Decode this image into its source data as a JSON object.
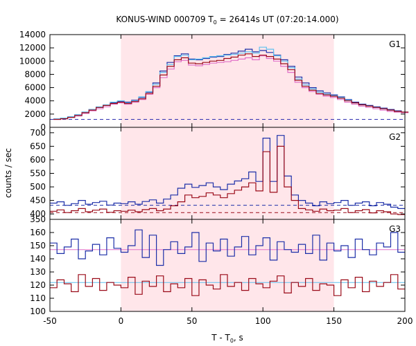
{
  "title_main": "KONUS-WIND 000709 T",
  "title_sub": "0",
  "title_rest": " = 26414s UT (07:20:14.000)",
  "xlabel_main": "T - T",
  "xlabel_sub": "0",
  "xlabel_rest": ", s",
  "ylabel": "counts / sec",
  "colors": {
    "shade": "#ffe6ea",
    "g1_curve_a": "#1c2fa8",
    "g1_curve_b": "#5fc0f0",
    "g1_curve_c": "#e070c8",
    "g1_curve_d": "#9a0a18",
    "g1_bg": "#3030b0",
    "g23_curve_a": "#1c2fa8",
    "g23_curve_b": "#9a0a18",
    "g23_fit_a": "#5fc0f0",
    "g23_fit_b": "#e070c8"
  },
  "chart_data": {
    "type": "line",
    "x_range": [
      -50,
      200
    ],
    "x_ticks": [
      -50,
      0,
      50,
      100,
      150,
      200
    ],
    "shaded_interval": [
      0,
      150
    ],
    "panels": [
      {
        "name": "G1",
        "ylim": [
          0,
          14000
        ],
        "y_ticks": [
          0,
          2000,
          4000,
          6000,
          8000,
          10000,
          12000,
          14000
        ],
        "background_level": 1200,
        "x": [
          -45,
          -40,
          -35,
          -30,
          -25,
          -20,
          -15,
          -10,
          -5,
          0,
          5,
          10,
          15,
          20,
          25,
          30,
          35,
          40,
          45,
          50,
          55,
          60,
          65,
          70,
          75,
          80,
          85,
          90,
          95,
          100,
          105,
          110,
          115,
          120,
          125,
          130,
          135,
          140,
          145,
          150,
          155,
          160,
          165,
          170,
          175,
          180,
          185,
          190,
          195,
          200
        ],
        "series": [
          {
            "values": [
              1300,
              1400,
              1600,
              1900,
              2300,
              2700,
              3000,
              3300,
              3700,
              3900,
              3800,
              4100,
              4500,
              5300,
              6700,
              8500,
              9800,
              10800,
              11100,
              10300,
              10200,
              10400,
              10600,
              10700,
              11000,
              11200,
              11500,
              11800,
              11400,
              11600,
              11300,
              10900,
              10200,
              9200,
              7600,
              6700,
              6000,
              5500,
              5200,
              4900,
              4600,
              4200,
              3800,
              3500,
              3300,
              3100,
              2900,
              2700,
              2500,
              2300
            ]
          },
          {
            "values": [
              1300,
              1400,
              1600,
              1900,
              2300,
              2700,
              3100,
              3400,
              3800,
              4000,
              3700,
              4000,
              4600,
              5400,
              6500,
              8300,
              9500,
              10700,
              10900,
              10200,
              10300,
              10500,
              10700,
              10800,
              10900,
              11000,
              11200,
              11400,
              11200,
              12100,
              11800,
              10800,
              10000,
              9000,
              7300,
              6400,
              5800,
              5300,
              5000,
              4800,
              4500,
              4100,
              3700,
              3400,
              3200,
              3000,
              2800,
              2600,
              2400,
              2200
            ]
          },
          {
            "values": [
              1200,
              1300,
              1500,
              1700,
              2100,
              2500,
              2800,
              3100,
              3500,
              3700,
              3500,
              3800,
              4200,
              5000,
              6000,
              7500,
              8800,
              9900,
              10100,
              9400,
              9300,
              9500,
              9700,
              9800,
              9900,
              10100,
              10300,
              10500,
              10200,
              10800,
              10400,
              10000,
              9200,
              8300,
              6800,
              6000,
              5400,
              5000,
              4700,
              4500,
              4200,
              3800,
              3500,
              3200,
              3000,
              2800,
              2600,
              2400,
              2300,
              2200
            ]
          },
          {
            "values": [
              1200,
              1300,
              1500,
              1800,
              2200,
              2600,
              3000,
              3300,
              3600,
              3800,
              3600,
              3900,
              4300,
              5100,
              6200,
              7900,
              9200,
              10200,
              10500,
              9700,
              9600,
              9800,
              10000,
              10100,
              10400,
              10600,
              10900,
              11100,
              10700,
              10900,
              10700,
              10300,
              9600,
              8700,
              7100,
              6200,
              5600,
              5100,
              4900,
              4700,
              4400,
              4000,
              3700,
              3400,
              3200,
              3000,
              2800,
              2600,
              2400,
              2300
            ]
          }
        ]
      },
      {
        "name": "G2",
        "ylim": [
          380,
          720
        ],
        "y_ticks": [
          400,
          450,
          500,
          550,
          600,
          650,
          700
        ],
        "background_levels": [
          432,
          405
        ],
        "x": [
          -47.5,
          -42.5,
          -37.5,
          -32.5,
          -27.5,
          -22.5,
          -17.5,
          -12.5,
          -7.5,
          -2.5,
          2.5,
          7.5,
          12.5,
          17.5,
          22.5,
          27.5,
          32.5,
          37.5,
          42.5,
          47.5,
          52.5,
          57.5,
          62.5,
          67.5,
          72.5,
          77.5,
          82.5,
          87.5,
          92.5,
          97.5,
          102.5,
          107.5,
          112.5,
          117.5,
          122.5,
          127.5,
          132.5,
          137.5,
          142.5,
          147.5,
          152.5,
          157.5,
          162.5,
          167.5,
          172.5,
          177.5,
          182.5,
          187.5,
          192.5,
          197.5
        ],
        "series": [
          {
            "values": [
              440,
              445,
              432,
              438,
              450,
              436,
              442,
              447,
              433,
              440,
              438,
              445,
              436,
              446,
              452,
              440,
              455,
              470,
              495,
              510,
              498,
              505,
              515,
              500,
              490,
              510,
              522,
              530,
              555,
              520,
              680,
              520,
              690,
              540,
              470,
              450,
              440,
              430,
              445,
              438,
              442,
              450,
              432,
              440,
              445,
              430,
              442,
              436,
              425,
              420
            ]
          },
          {
            "values": [
              410,
              415,
              405,
              412,
              420,
              408,
              414,
              418,
              406,
              412,
              410,
              414,
              408,
              416,
              420,
              412,
              418,
              430,
              445,
              470,
              460,
              465,
              478,
              470,
              460,
              475,
              488,
              500,
              515,
              485,
              630,
              480,
              650,
              500,
              450,
              420,
              415,
              410,
              418,
              412,
              414,
              420,
              405,
              412,
              416,
              404,
              412,
              408,
              400,
              398
            ]
          }
        ]
      },
      {
        "name": "G3",
        "ylim": [
          100,
          170
        ],
        "y_ticks": [
          100,
          110,
          120,
          130,
          140,
          150,
          160
        ],
        "fit_levels": [
          147,
          122
        ],
        "x": [
          -47.5,
          -42.5,
          -37.5,
          -32.5,
          -27.5,
          -22.5,
          -17.5,
          -12.5,
          -7.5,
          -2.5,
          2.5,
          7.5,
          12.5,
          17.5,
          22.5,
          27.5,
          32.5,
          37.5,
          42.5,
          47.5,
          52.5,
          57.5,
          62.5,
          67.5,
          72.5,
          77.5,
          82.5,
          87.5,
          92.5,
          97.5,
          102.5,
          107.5,
          112.5,
          117.5,
          122.5,
          127.5,
          132.5,
          137.5,
          142.5,
          147.5,
          152.5,
          157.5,
          162.5,
          167.5,
          172.5,
          177.5,
          182.5,
          187.5,
          192.5,
          197.5
        ],
        "series": [
          {
            "values": [
              152,
              144,
              149,
              155,
              140,
              146,
              151,
              143,
              156,
              148,
              145,
              150,
              162,
              141,
              158,
              135,
              147,
              153,
              144,
              149,
              160,
              138,
              152,
              146,
              155,
              142,
              149,
              157,
              143,
              150,
              156,
              139,
              153,
              147,
              145,
              151,
              144,
              158,
              139,
              152,
              146,
              150,
              141,
              155,
              147,
              143,
              152,
              149,
              160,
              145
            ]
          },
          {
            "values": [
              118,
              124,
              121,
              115,
              128,
              119,
              125,
              116,
              122,
              120,
              118,
              126,
              113,
              123,
              119,
              127,
              115,
              121,
              118,
              125,
              112,
              124,
              120,
              117,
              128,
              119,
              122,
              116,
              125,
              121,
              118,
              123,
              127,
              114,
              122,
              119,
              125,
              116,
              121,
              120,
              112,
              124,
              118,
              126,
              115,
              123,
              119,
              122,
              128,
              117
            ]
          }
        ]
      }
    ]
  }
}
